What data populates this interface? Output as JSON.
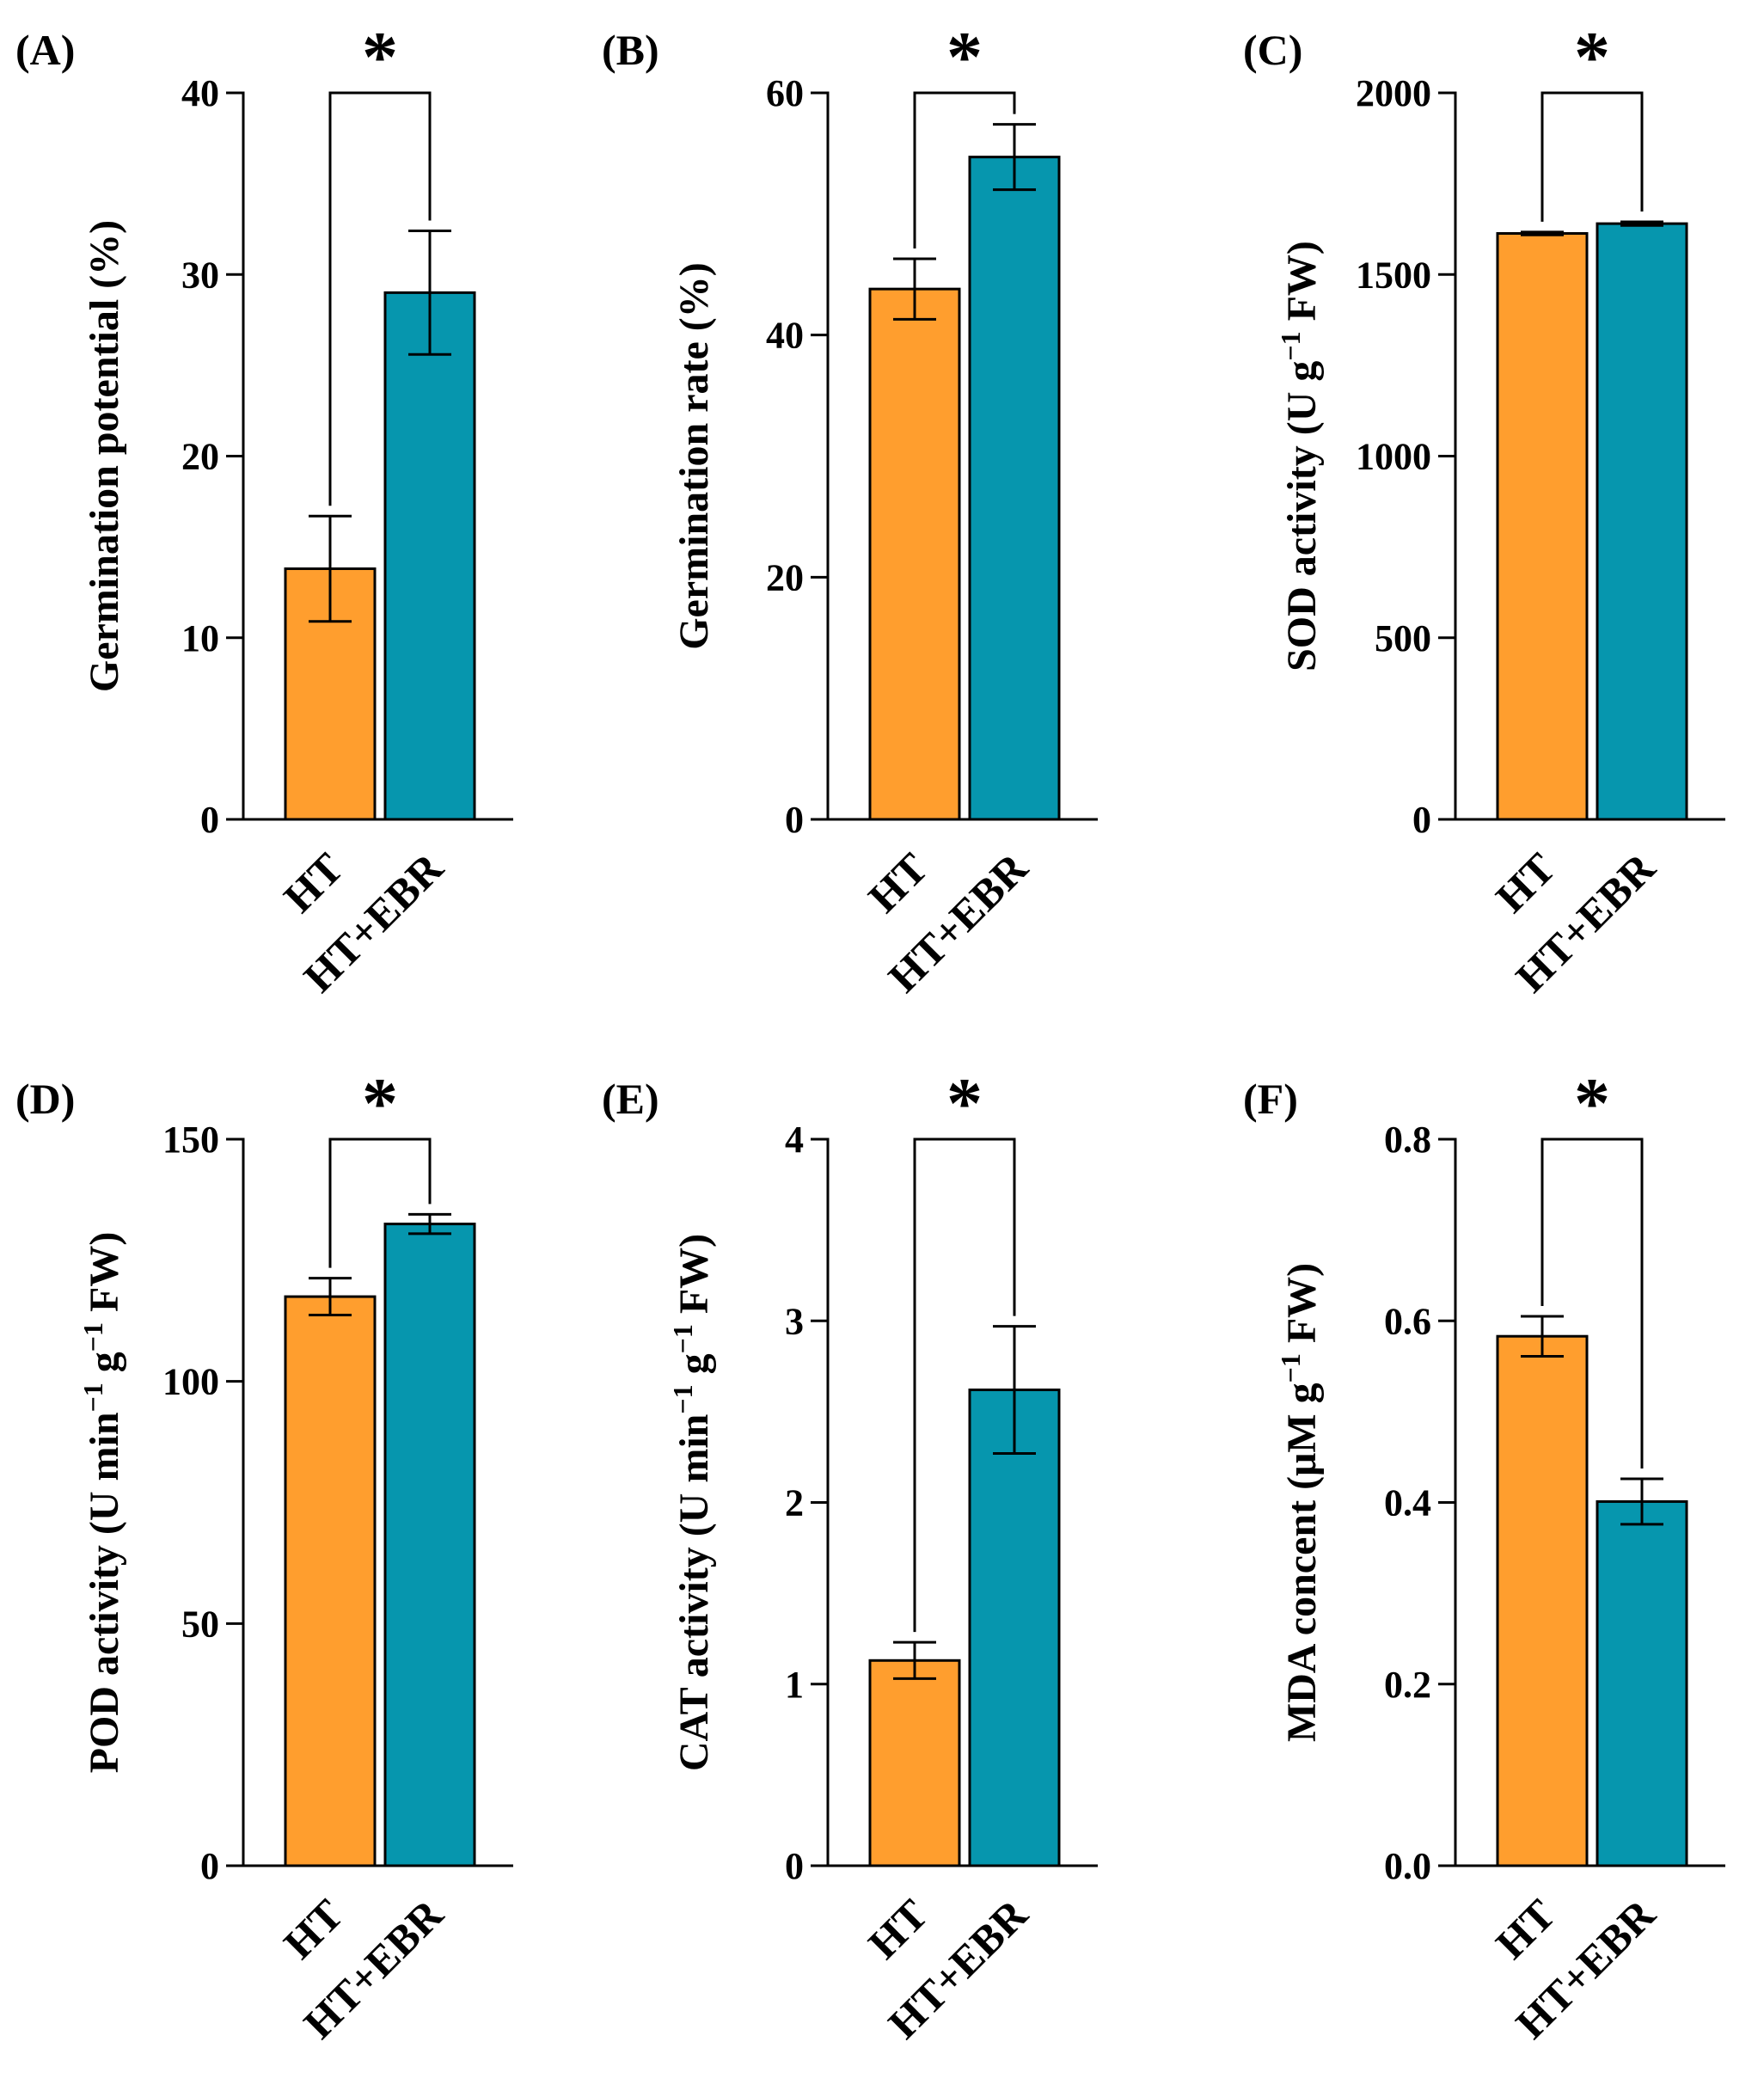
{
  "colors": {
    "ht": "#FF9E2E",
    "ebr": "#0696AE",
    "axis": "#000000"
  },
  "chart_data": [
    {
      "type": "bar",
      "panel": "(A)",
      "ylabel": "Germination potential (%)",
      "ylim": [
        0,
        40
      ],
      "yticks": [
        0,
        10,
        20,
        30,
        40
      ],
      "categories": [
        "HT",
        "HT+EBR"
      ],
      "values": [
        13.8,
        29.0
      ],
      "errors": [
        2.9,
        3.4
      ],
      "significance": {
        "label": "*",
        "between": [
          0,
          1
        ],
        "level": 40
      },
      "grid": false
    },
    {
      "type": "bar",
      "panel": "(B)",
      "ylabel": "Germination rate (%)",
      "ylim": [
        0,
        60
      ],
      "yticks": [
        0,
        20,
        40,
        60
      ],
      "categories": [
        "HT",
        "HT+EBR"
      ],
      "values": [
        43.8,
        54.7
      ],
      "errors": [
        2.5,
        2.7
      ],
      "significance": {
        "label": "*",
        "between": [
          0,
          1
        ],
        "level": 60
      },
      "grid": false
    },
    {
      "type": "bar",
      "panel": "(C)",
      "ylabel_parts": [
        "SOD activity (U g",
        "−1",
        " FW)"
      ],
      "ylim": [
        0,
        2000
      ],
      "yticks": [
        0,
        500,
        1000,
        1500,
        2000
      ],
      "categories": [
        "HT",
        "HT+EBR"
      ],
      "values": [
        1613,
        1640
      ],
      "errors": [
        4,
        5
      ],
      "significance": {
        "label": "*",
        "between": [
          0,
          1
        ],
        "level": 2000
      },
      "grid": false
    },
    {
      "type": "bar",
      "panel": "(D)",
      "ylabel_parts": [
        "POD activity (U min",
        "−1",
        " g",
        "−1",
        " FW)"
      ],
      "ylim": [
        0,
        150
      ],
      "yticks": [
        0,
        50,
        100,
        150
      ],
      "categories": [
        "HT",
        "HT+EBR"
      ],
      "values": [
        117.5,
        132.5
      ],
      "errors": [
        3.8,
        2.0
      ],
      "significance": {
        "label": "*",
        "between": [
          0,
          1
        ],
        "level": 150
      },
      "grid": false
    },
    {
      "type": "bar",
      "panel": "(E)",
      "ylabel_parts": [
        "CAT activity (U min",
        "−1",
        " g",
        "−1",
        " FW)"
      ],
      "ylim": [
        0,
        4
      ],
      "yticks": [
        0,
        1,
        2,
        3,
        4
      ],
      "categories": [
        "HT",
        "HT+EBR"
      ],
      "values": [
        1.13,
        2.62
      ],
      "errors": [
        0.1,
        0.35
      ],
      "significance": {
        "label": "*",
        "between": [
          0,
          1
        ],
        "level": 4
      },
      "grid": false
    },
    {
      "type": "bar",
      "panel": "(F)",
      "ylabel_parts": [
        "MDA concent (μM g",
        "−1",
        " FW)"
      ],
      "ylim": [
        0,
        0.8
      ],
      "yticks": [
        "0.0",
        "0.2",
        "0.4",
        "0.6",
        "0.8"
      ],
      "categories": [
        "HT",
        "HT+EBR"
      ],
      "values": [
        0.583,
        0.401
      ],
      "errors": [
        0.022,
        0.025
      ],
      "significance": {
        "label": "*",
        "between": [
          0,
          1
        ],
        "level": 0.8
      },
      "grid": false
    }
  ]
}
